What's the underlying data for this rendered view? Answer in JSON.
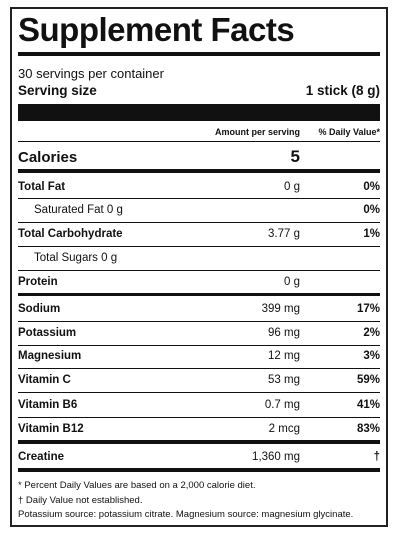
{
  "header": {
    "title": "Supplement Facts",
    "servings": "30 servings per container",
    "serving_size_label": "Serving size",
    "serving_size_value": "1 stick (8 g)"
  },
  "columns": {
    "amount": "Amount per serving",
    "daily_value": "% Daily Value*"
  },
  "calories": {
    "label": "Calories",
    "value": 5
  },
  "rows": [
    {
      "name": "Total Fat",
      "amount": "0 g",
      "daily_value": "0%"
    },
    {
      "name": "Saturated Fat 0 g",
      "daily_value": "0%"
    },
    {
      "name": "Total Carbohydrate",
      "amount": "3.77 g",
      "daily_value": "1%"
    },
    {
      "name": "Total Sugars 0 g"
    },
    {
      "name": "Protein",
      "amount": "0 g"
    },
    {
      "name": "Sodium",
      "amount": "399 mg",
      "daily_value": "17%"
    },
    {
      "name": "Potassium",
      "amount": "96 mg",
      "daily_value": "2%"
    },
    {
      "name": "Magnesium",
      "amount": "12 mg",
      "daily_value": "3%"
    },
    {
      "name": "Vitamin C",
      "amount": "53 mg",
      "daily_value": "59%"
    },
    {
      "name": "Vitamin B6",
      "amount": "0.7 mg",
      "daily_value": "41%"
    },
    {
      "name": "Vitamin B12",
      "amount": "2 mcg",
      "daily_value": "83%"
    },
    {
      "name": "Creatine",
      "amount": "1,360 mg",
      "daily_value": "†"
    }
  ],
  "footnotes": [
    "* Percent Daily Values are based on a 2,000 calorie diet.",
    "† Daily Value not established.",
    "Potassium source: potassium citrate. Magnesium source: magnesium glycinate."
  ]
}
